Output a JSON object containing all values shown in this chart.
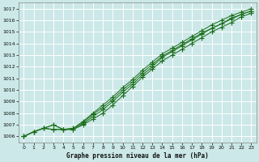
{
  "xlabel": "Graphe pression niveau de la mer (hPa)",
  "ylim": [
    1005.5,
    1017.5
  ],
  "xlim": [
    -0.5,
    23.5
  ],
  "yticks": [
    1006,
    1007,
    1008,
    1009,
    1010,
    1011,
    1012,
    1013,
    1014,
    1015,
    1016,
    1017
  ],
  "xticks": [
    0,
    1,
    2,
    3,
    4,
    5,
    6,
    7,
    8,
    9,
    10,
    11,
    12,
    13,
    14,
    15,
    16,
    17,
    18,
    19,
    20,
    21,
    22,
    23
  ],
  "bg_color": "#cce8e8",
  "grid_color": "#ffffff",
  "line_color": "#1a6e1a",
  "line1": [
    1006.0,
    1006.4,
    1006.7,
    1007.0,
    1006.6,
    1006.6,
    1007.0,
    1007.5,
    1008.0,
    1008.7,
    1009.5,
    1010.3,
    1011.1,
    1011.8,
    1012.5,
    1013.0,
    1013.5,
    1014.0,
    1014.5,
    1015.0,
    1015.4,
    1015.8,
    1016.3,
    1016.6
  ],
  "line2": [
    1006.0,
    1006.4,
    1006.7,
    1007.0,
    1006.6,
    1006.7,
    1007.2,
    1007.9,
    1008.5,
    1009.2,
    1010.0,
    1010.7,
    1011.5,
    1012.2,
    1012.9,
    1013.4,
    1013.9,
    1014.4,
    1014.9,
    1015.3,
    1015.7,
    1016.2,
    1016.5,
    1016.8
  ],
  "line3": [
    1006.0,
    1006.4,
    1006.7,
    1006.6,
    1006.6,
    1006.6,
    1007.1,
    1007.7,
    1008.3,
    1009.0,
    1009.8,
    1010.5,
    1011.3,
    1012.0,
    1012.8,
    1013.3,
    1013.8,
    1014.3,
    1014.8,
    1015.3,
    1015.7,
    1016.1,
    1016.5,
    1016.8
  ],
  "line4": [
    1006.0,
    1006.4,
    1006.7,
    1006.6,
    1006.6,
    1006.7,
    1007.3,
    1008.0,
    1008.7,
    1009.4,
    1010.2,
    1010.9,
    1011.7,
    1012.4,
    1013.1,
    1013.6,
    1014.1,
    1014.6,
    1015.1,
    1015.6,
    1016.0,
    1016.4,
    1016.7,
    1017.0
  ]
}
